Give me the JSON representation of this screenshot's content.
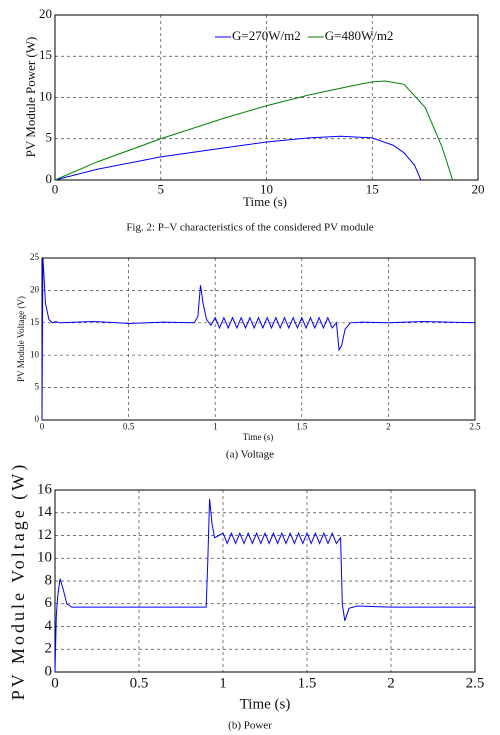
{
  "chart_data": [
    {
      "type": "line",
      "xlabel": "Time (s)",
      "ylabel": "PV Module Power (W)",
      "caption": "Fig. 2: P–V characteristics of the considered PV module",
      "xlim": [
        0,
        20
      ],
      "ylim": [
        0,
        20
      ],
      "xticks": [
        0,
        5,
        10,
        15,
        20
      ],
      "yticks": [
        0,
        5,
        10,
        15,
        20
      ],
      "grid": true,
      "series": [
        {
          "name": "G=270W/m2",
          "color": "#0000ff",
          "x": [
            0,
            2,
            5,
            8,
            10,
            12,
            13.5,
            15,
            16,
            16.5,
            17,
            17.3
          ],
          "values": [
            0,
            1.3,
            2.8,
            3.9,
            4.6,
            5.1,
            5.3,
            5.1,
            4.2,
            3.3,
            1.8,
            0
          ]
        },
        {
          "name": "G=480W/m2",
          "color": "#008000",
          "x": [
            0,
            2,
            5,
            8,
            10,
            12,
            14,
            15,
            15.6,
            16.5,
            17.5,
            18.3,
            18.8
          ],
          "values": [
            0,
            2.2,
            5,
            7.5,
            9,
            10.3,
            11.4,
            11.9,
            12,
            11.6,
            8.8,
            4,
            0
          ]
        }
      ]
    },
    {
      "type": "line",
      "xlabel": "Time (s)",
      "ylabel": "PV Module Voltage (V)",
      "caption": "(a) Voltage",
      "xlim": [
        0,
        2.5
      ],
      "ylim": [
        0,
        25
      ],
      "xticks": [
        0,
        0.5,
        1,
        1.5,
        2,
        2.5
      ],
      "yticks": [
        0,
        5,
        10,
        15,
        20,
        25
      ],
      "grid": true,
      "series": [
        {
          "color": "#0000ff",
          "x": [
            0,
            0.005,
            0.012,
            0.02,
            0.04,
            0.06,
            0.08,
            0.1,
            0.3,
            0.5,
            0.7,
            0.88,
            0.9,
            0.915,
            0.93,
            0.95,
            0.975,
            1.0,
            1.025,
            1.05,
            1.075,
            1.1,
            1.125,
            1.15,
            1.175,
            1.2,
            1.225,
            1.25,
            1.275,
            1.3,
            1.325,
            1.35,
            1.375,
            1.4,
            1.425,
            1.45,
            1.475,
            1.5,
            1.525,
            1.55,
            1.575,
            1.6,
            1.625,
            1.65,
            1.675,
            1.7,
            1.715,
            1.73,
            1.75,
            1.78,
            1.85,
            2.0,
            2.2,
            2.5
          ],
          "values": [
            0,
            25,
            22,
            18,
            15.5,
            15,
            15.2,
            15,
            15.2,
            14.9,
            15.1,
            15,
            16,
            20.8,
            18,
            15.5,
            14.6,
            15.8,
            14.2,
            15.8,
            14.2,
            15.8,
            14.2,
            15.8,
            14.2,
            15.8,
            14.2,
            15.8,
            14.2,
            15.8,
            14.2,
            15.8,
            14.2,
            15.8,
            14.2,
            15.8,
            14.2,
            15.8,
            14.2,
            15.8,
            14.2,
            15.8,
            14.2,
            15.8,
            14.2,
            15,
            10.8,
            11.5,
            14,
            15,
            15.1,
            15,
            15.2,
            15
          ]
        }
      ]
    },
    {
      "type": "line",
      "xlabel": "Time (s)",
      "ylabel": "PV Module Voltage (W)",
      "caption": "(b) Power",
      "xlim": [
        0,
        2.5
      ],
      "ylim": [
        0,
        16
      ],
      "xticks": [
        0,
        0.5,
        1,
        1.5,
        2,
        2.5
      ],
      "yticks": [
        0,
        2,
        4,
        6,
        8,
        10,
        12,
        14,
        16
      ],
      "grid": true,
      "series": [
        {
          "color": "#0000ff",
          "x": [
            0,
            0.008,
            0.015,
            0.03,
            0.05,
            0.07,
            0.1,
            0.5,
            0.9,
            0.91,
            0.92,
            0.935,
            0.95,
            0.975,
            1.0,
            1.025,
            1.05,
            1.075,
            1.1,
            1.125,
            1.15,
            1.175,
            1.2,
            1.225,
            1.25,
            1.275,
            1.3,
            1.325,
            1.35,
            1.375,
            1.4,
            1.425,
            1.45,
            1.475,
            1.5,
            1.525,
            1.55,
            1.575,
            1.6,
            1.625,
            1.65,
            1.675,
            1.7,
            1.71,
            1.725,
            1.75,
            1.8,
            2.0,
            2.5
          ],
          "values": [
            0,
            5,
            6.5,
            8.2,
            7.2,
            6,
            5.7,
            5.7,
            5.7,
            10,
            15.2,
            13,
            11.8,
            12,
            12.2,
            11.3,
            12.2,
            11.3,
            12.2,
            11.3,
            12.2,
            11.3,
            12.2,
            11.3,
            12.2,
            11.3,
            12.2,
            11.3,
            12.2,
            11.3,
            12.2,
            11.3,
            12.2,
            11.3,
            12.2,
            11.3,
            12.2,
            11.3,
            12.2,
            11.3,
            12.2,
            11.3,
            11.8,
            6,
            4.5,
            5.6,
            5.8,
            5.7,
            5.7
          ]
        }
      ]
    }
  ]
}
